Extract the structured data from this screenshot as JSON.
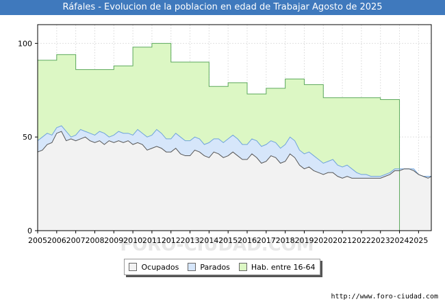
{
  "chart_data": {
    "type": "area",
    "title": "Ráfales - Evolucion de la poblacion en edad de Trabajar Agosto de 2025",
    "xlabel": "",
    "ylabel": "",
    "ylim": [
      0,
      110
    ],
    "xlim": [
      2005,
      2025.67
    ],
    "y_ticks": [
      "0",
      "50",
      "100"
    ],
    "x_ticks": [
      "2005",
      "2006",
      "2007",
      "2008",
      "2009",
      "2010",
      "2011",
      "2012",
      "2013",
      "2014",
      "2015",
      "2016",
      "2017",
      "2018",
      "2019",
      "2020",
      "2021",
      "2022",
      "2023",
      "2024",
      "2025"
    ],
    "legend": [
      "Ocupados",
      "Parados",
      "Hab. entre 16-64"
    ],
    "colors": {
      "ocupados": "#f2f2f2",
      "parados": "#d6e6fa",
      "habitantes": "#dcf7c4",
      "ocupados_line": "#555555",
      "parados_line": "#6fa3dc",
      "habitantes_line": "#5ba85b"
    },
    "habitantes": {
      "years": [
        2005,
        2006,
        2007,
        2008,
        2009,
        2010,
        2011,
        2012,
        2013,
        2014,
        2015,
        2016,
        2017,
        2018,
        2019,
        2020,
        2021,
        2022,
        2023
      ],
      "values": [
        91,
        94,
        86,
        86,
        88,
        98,
        100,
        90,
        90,
        77,
        79,
        73,
        76,
        81,
        78,
        71,
        71,
        71,
        70
      ]
    },
    "activos": {
      "x": [
        2005.0,
        2005.25,
        2005.5,
        2005.75,
        2006.0,
        2006.25,
        2006.5,
        2006.75,
        2007.0,
        2007.25,
        2007.5,
        2007.75,
        2008.0,
        2008.25,
        2008.5,
        2008.75,
        2009.0,
        2009.25,
        2009.5,
        2009.75,
        2010.0,
        2010.25,
        2010.5,
        2010.75,
        2011.0,
        2011.25,
        2011.5,
        2011.75,
        2012.0,
        2012.25,
        2012.5,
        2012.75,
        2013.0,
        2013.25,
        2013.5,
        2013.75,
        2014.0,
        2014.25,
        2014.5,
        2014.75,
        2015.0,
        2015.25,
        2015.5,
        2015.75,
        2016.0,
        2016.25,
        2016.5,
        2016.75,
        2017.0,
        2017.25,
        2017.5,
        2017.75,
        2018.0,
        2018.25,
        2018.5,
        2018.75,
        2019.0,
        2019.25,
        2019.5,
        2019.75,
        2020.0,
        2020.25,
        2020.5,
        2020.75,
        2021.0,
        2021.25,
        2021.5,
        2021.75,
        2022.0,
        2022.25,
        2022.5,
        2022.75,
        2023.0,
        2023.25,
        2023.5,
        2023.75,
        2024.0,
        2024.25,
        2024.5,
        2024.75,
        2025.0,
        2025.25,
        2025.5,
        2025.67
      ],
      "values": [
        48,
        50,
        52,
        51,
        55,
        56,
        53,
        50,
        51,
        54,
        53,
        52,
        51,
        53,
        52,
        50,
        51,
        53,
        52,
        52,
        51,
        54,
        52,
        50,
        51,
        54,
        52,
        49,
        49,
        52,
        50,
        48,
        48,
        50,
        49,
        46,
        47,
        49,
        49,
        47,
        49,
        51,
        49,
        46,
        46,
        49,
        48,
        45,
        46,
        48,
        47,
        44,
        46,
        50,
        48,
        43,
        41,
        42,
        40,
        38,
        36,
        37,
        38,
        35,
        34,
        35,
        33,
        31,
        30,
        30,
        29,
        29,
        29,
        30,
        31,
        33,
        33,
        33,
        33,
        33,
        30,
        29,
        29,
        29
      ]
    },
    "ocupados": {
      "x": [
        2005.0,
        2005.25,
        2005.5,
        2005.75,
        2006.0,
        2006.25,
        2006.5,
        2006.75,
        2007.0,
        2007.25,
        2007.5,
        2007.75,
        2008.0,
        2008.25,
        2008.5,
        2008.75,
        2009.0,
        2009.25,
        2009.5,
        2009.75,
        2010.0,
        2010.25,
        2010.5,
        2010.75,
        2011.0,
        2011.25,
        2011.5,
        2011.75,
        2012.0,
        2012.25,
        2012.5,
        2012.75,
        2013.0,
        2013.25,
        2013.5,
        2013.75,
        2014.0,
        2014.25,
        2014.5,
        2014.75,
        2015.0,
        2015.25,
        2015.5,
        2015.75,
        2016.0,
        2016.25,
        2016.5,
        2016.75,
        2017.0,
        2017.25,
        2017.5,
        2017.75,
        2018.0,
        2018.25,
        2018.5,
        2018.75,
        2019.0,
        2019.25,
        2019.5,
        2019.75,
        2020.0,
        2020.25,
        2020.5,
        2020.75,
        2021.0,
        2021.25,
        2021.5,
        2021.75,
        2022.0,
        2022.25,
        2022.5,
        2022.75,
        2023.0,
        2023.25,
        2023.5,
        2023.75,
        2024.0,
        2024.25,
        2024.5,
        2024.75,
        2025.0,
        2025.25,
        2025.5,
        2025.67
      ],
      "values": [
        42,
        43,
        46,
        47,
        52,
        53,
        48,
        49,
        48,
        49,
        50,
        48,
        47,
        48,
        46,
        48,
        47,
        48,
        47,
        48,
        46,
        47,
        46,
        43,
        44,
        45,
        44,
        42,
        42,
        44,
        41,
        40,
        40,
        43,
        42,
        40,
        39,
        42,
        41,
        39,
        40,
        42,
        40,
        38,
        38,
        41,
        39,
        36,
        37,
        40,
        39,
        36,
        37,
        41,
        39,
        35,
        33,
        34,
        32,
        31,
        30,
        31,
        31,
        29,
        28,
        29,
        28,
        28,
        28,
        28,
        28,
        28,
        28,
        29,
        30,
        32,
        32,
        33,
        33,
        32,
        30,
        29,
        28,
        29
      ]
    }
  },
  "source": "http://www.foro-ciudad.com",
  "watermark": "FORO-CIUDAD.COM"
}
